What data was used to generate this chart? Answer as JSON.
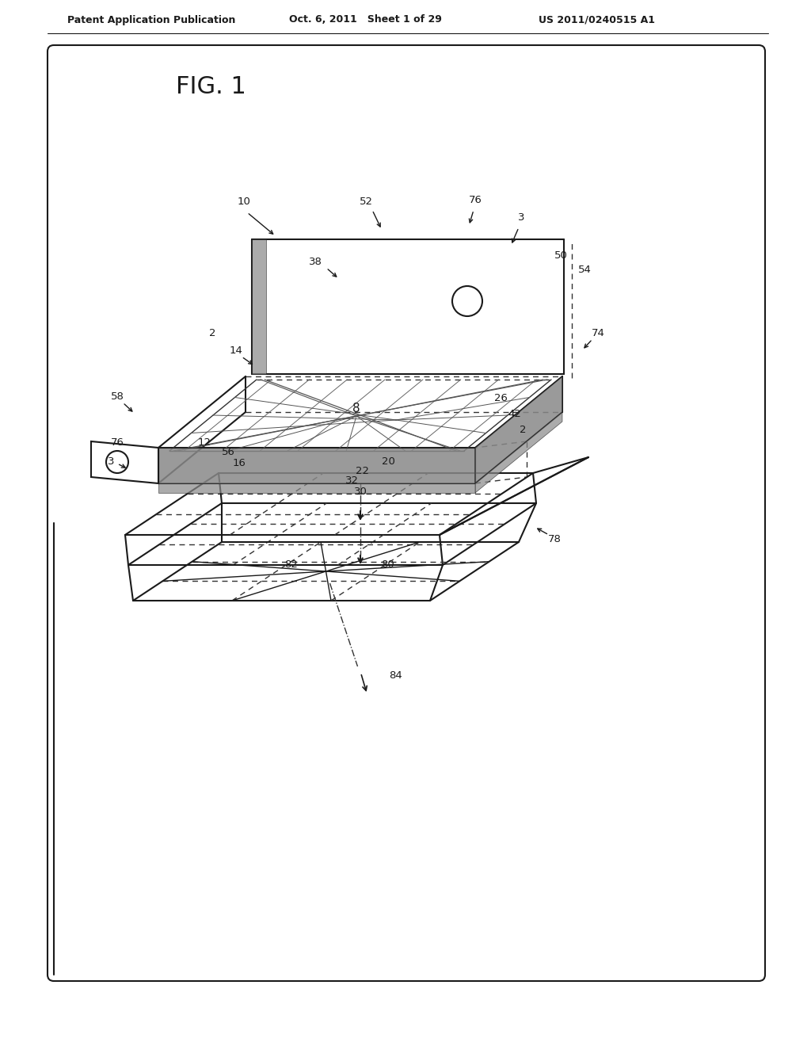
{
  "background_color": "#ffffff",
  "header_left": "Patent Application Publication",
  "header_mid": "Oct. 6, 2011   Sheet 1 of 29",
  "header_right": "US 2011/0240515 A1",
  "fig_label": "FIG. 1",
  "line_color": "#1a1a1a",
  "text_color": "#1a1a1a",
  "dashed_color": "#333333",
  "gray_color": "#777777"
}
